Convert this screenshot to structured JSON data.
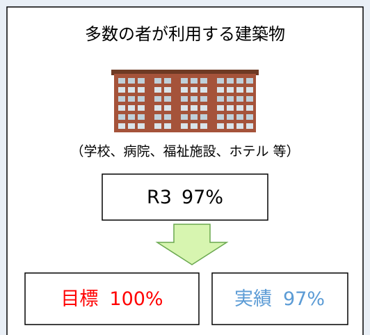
{
  "title": "多数の者が利用する建築物",
  "caption": "（学校、病院、福祉施設、ホテル 等）",
  "current": {
    "label": "R3",
    "value": "97%"
  },
  "target": {
    "label": "目標",
    "value": "100%"
  },
  "actual": {
    "label": "実績",
    "value": "97%"
  }
}
